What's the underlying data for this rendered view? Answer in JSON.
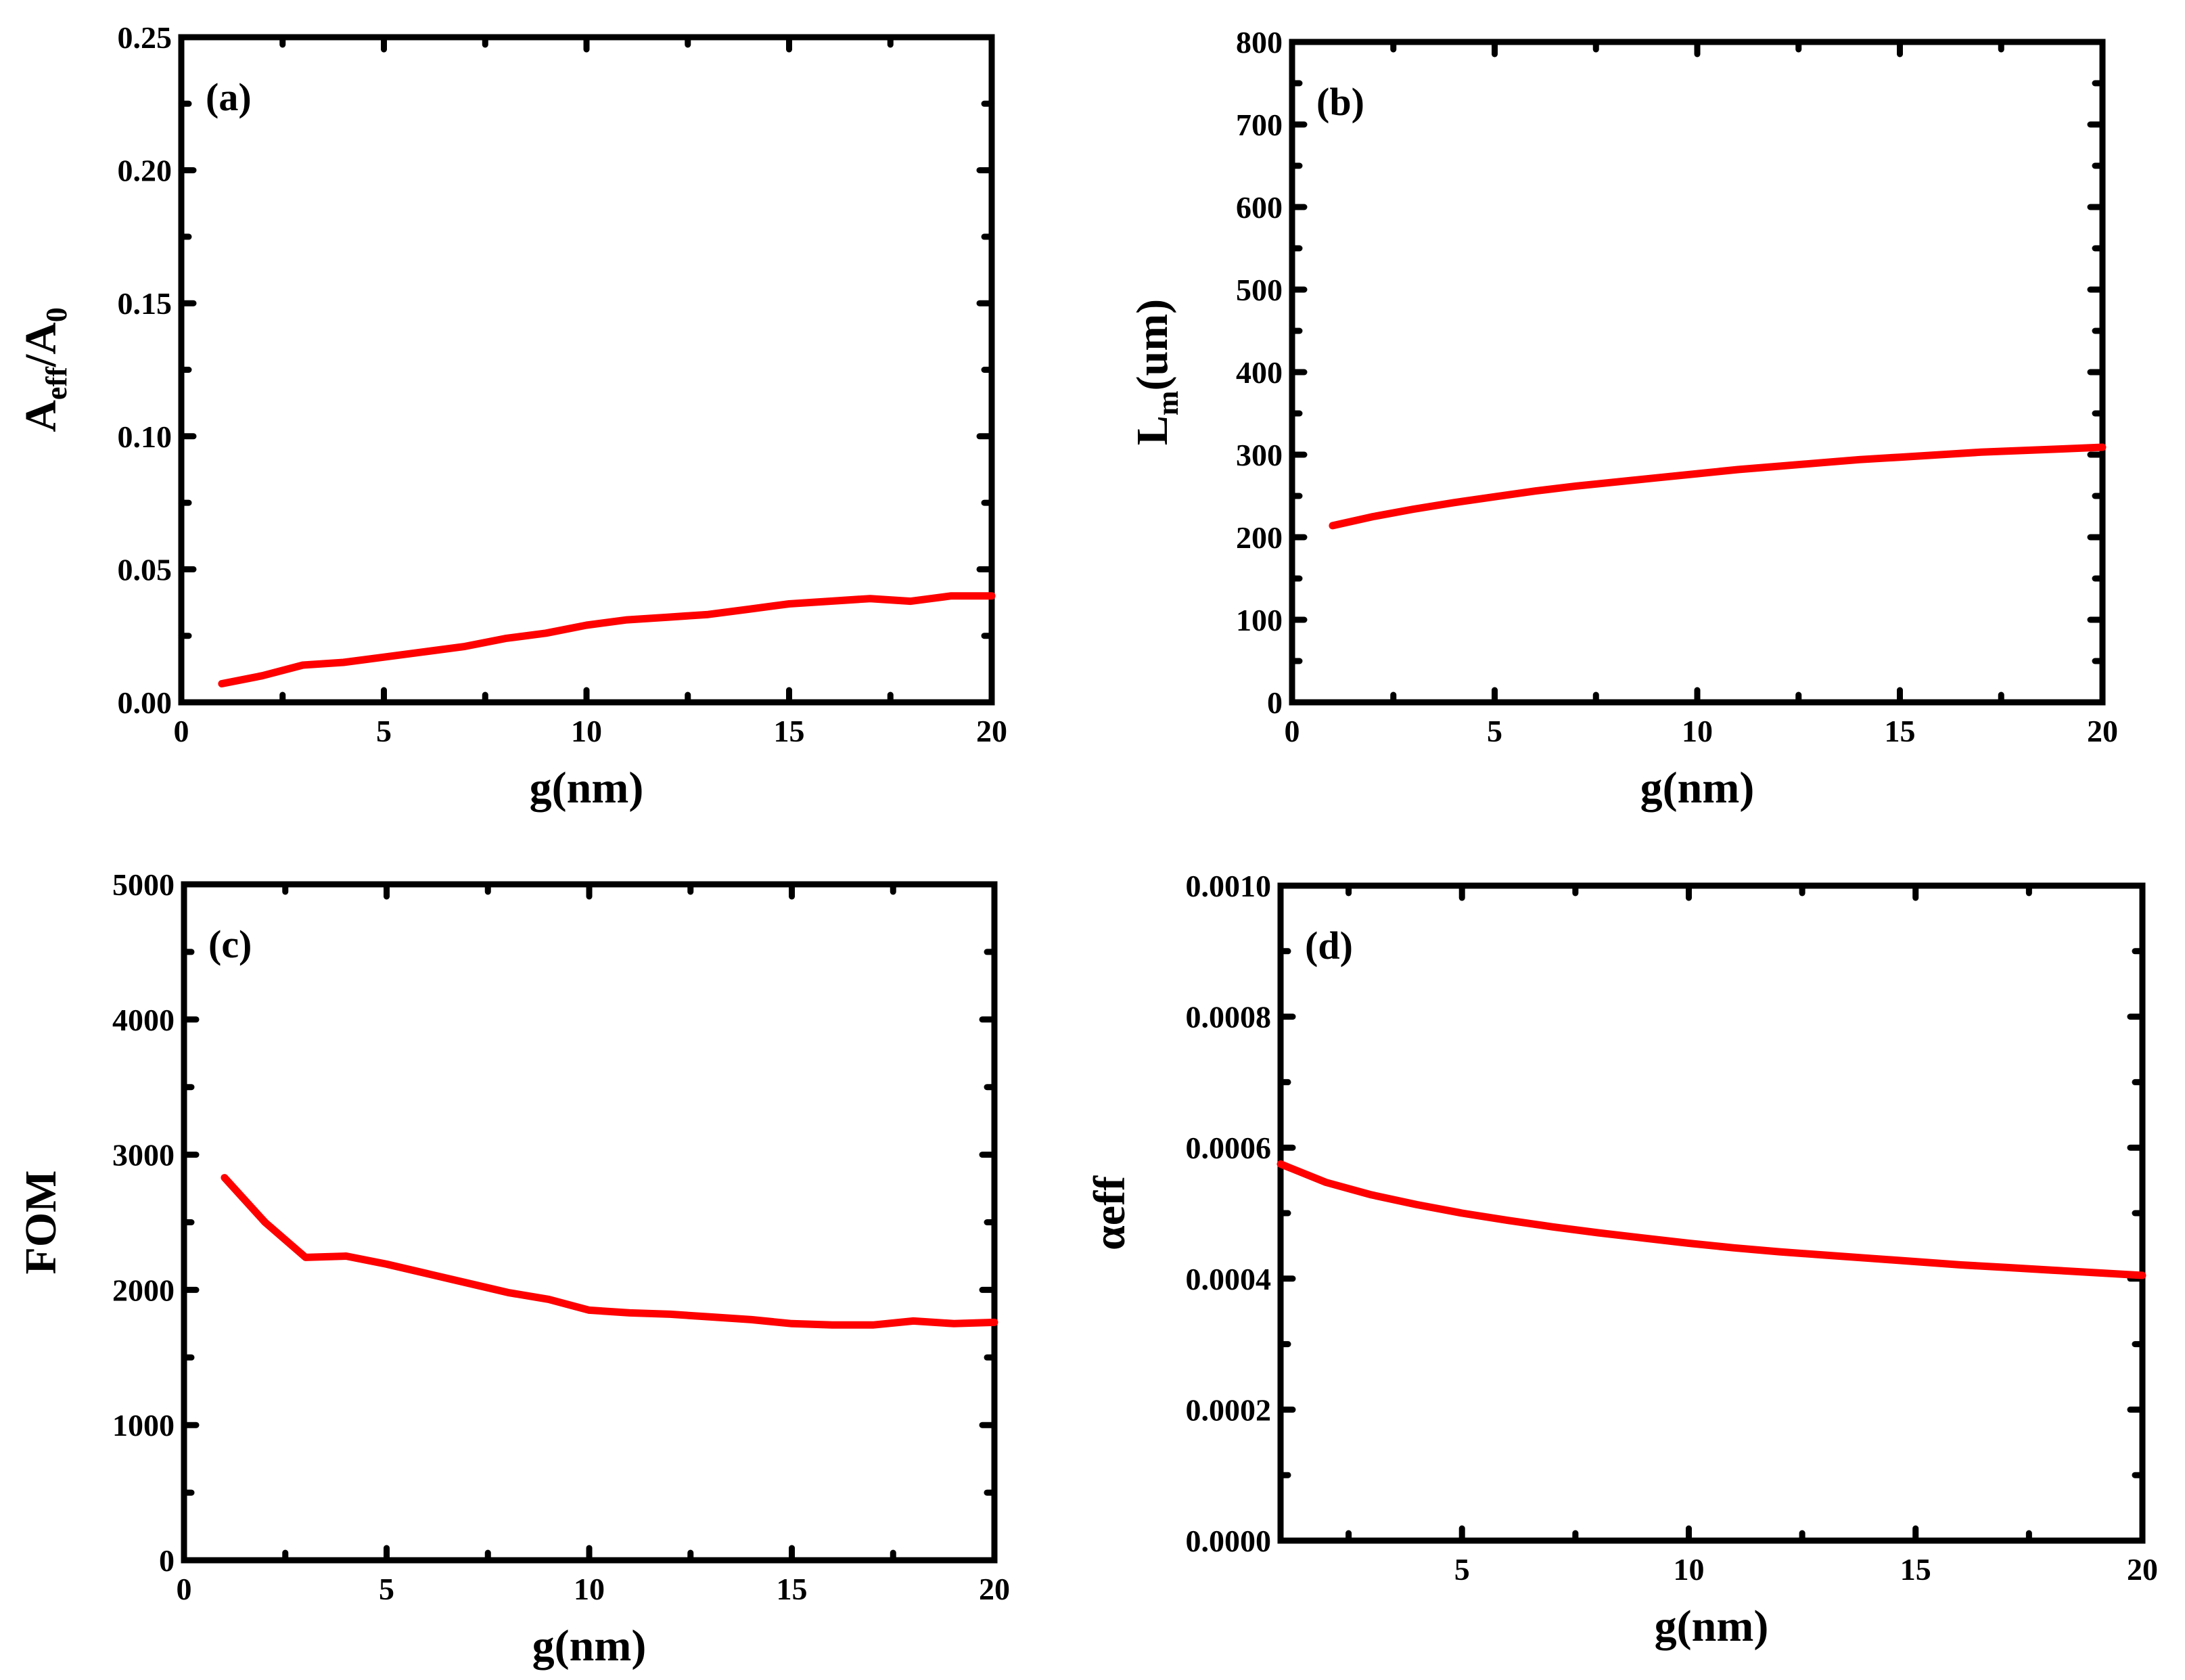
{
  "chart_data": [
    {
      "type": "line",
      "panel_label": "(a)",
      "xlabel": "g(nm)",
      "ylabel": "A_eff/A_0",
      "ylabel_parts": {
        "base1": "A",
        "sub1": "eff",
        "mid": "/A",
        "sub2": "0"
      },
      "xlim": [
        0,
        20
      ],
      "ylim": [
        0,
        0.25
      ],
      "x_ticks": [
        0,
        5,
        10,
        15,
        20
      ],
      "x_tick_labels": [
        "0",
        "5",
        "10",
        "15",
        "20"
      ],
      "y_ticks": [
        0.0,
        0.05,
        0.1,
        0.15,
        0.2,
        0.25
      ],
      "y_tick_labels": [
        "0.00",
        "0.05",
        "0.10",
        "0.15",
        "0.20",
        "0.25"
      ],
      "series": [
        {
          "name": "A_eff/A_0",
          "color": "#ff0000",
          "x": [
            1,
            2,
            3,
            4,
            5,
            6,
            7,
            8,
            9,
            10,
            11,
            12,
            13,
            14,
            15,
            16,
            17,
            18,
            19,
            20
          ],
          "y": [
            0.007,
            0.01,
            0.014,
            0.015,
            0.017,
            0.019,
            0.021,
            0.024,
            0.026,
            0.029,
            0.031,
            0.032,
            0.033,
            0.035,
            0.037,
            0.038,
            0.039,
            0.038,
            0.04,
            0.04
          ]
        }
      ]
    },
    {
      "type": "line",
      "panel_label": "(b)",
      "xlabel": "g(nm)",
      "ylabel": "L_m(um)",
      "ylabel_parts": {
        "base1": "L",
        "sub1": "m",
        "mid": "(um)",
        "sub2": ""
      },
      "xlim": [
        0,
        20
      ],
      "ylim": [
        0,
        800
      ],
      "x_ticks": [
        0,
        5,
        10,
        15,
        20
      ],
      "x_tick_labels": [
        "0",
        "5",
        "10",
        "15",
        "20"
      ],
      "y_ticks": [
        0,
        100,
        200,
        300,
        400,
        500,
        600,
        700,
        800
      ],
      "y_tick_labels": [
        "0",
        "100",
        "200",
        "300",
        "400",
        "500",
        "600",
        "700",
        "800"
      ],
      "series": [
        {
          "name": "L_m",
          "color": "#ff0000",
          "x": [
            1,
            2,
            3,
            4,
            5,
            6,
            7,
            8,
            9,
            10,
            11,
            12,
            13,
            14,
            15,
            16,
            17,
            18,
            19,
            20
          ],
          "y": [
            214,
            225,
            234,
            242,
            249,
            256,
            262,
            267,
            272,
            277,
            282,
            286,
            290,
            294,
            297,
            300,
            303,
            305,
            307,
            309
          ]
        }
      ]
    },
    {
      "type": "line",
      "panel_label": "(c)",
      "xlabel": "g(nm)",
      "ylabel": "FOM",
      "ylabel_parts": {
        "base1": "FOM",
        "sub1": "",
        "mid": "",
        "sub2": ""
      },
      "xlim": [
        0,
        20
      ],
      "ylim": [
        0,
        5000
      ],
      "x_ticks": [
        0,
        5,
        10,
        15,
        20
      ],
      "x_tick_labels": [
        "0",
        "5",
        "10",
        "15",
        "20"
      ],
      "y_ticks": [
        0,
        1000,
        2000,
        3000,
        4000,
        5000
      ],
      "y_tick_labels": [
        "0",
        "1000",
        "2000",
        "3000",
        "4000",
        "5000"
      ],
      "series": [
        {
          "name": "FOM",
          "color": "#ff0000",
          "x": [
            1,
            2,
            3,
            4,
            5,
            6,
            7,
            8,
            9,
            10,
            11,
            12,
            13,
            14,
            15,
            16,
            17,
            18,
            19,
            20
          ],
          "y": [
            2830,
            2500,
            2240,
            2250,
            2190,
            2120,
            2050,
            1980,
            1930,
            1850,
            1830,
            1820,
            1800,
            1780,
            1750,
            1740,
            1740,
            1770,
            1750,
            1760
          ]
        }
      ]
    },
    {
      "type": "line",
      "panel_label": "(d)",
      "xlabel": "g(nm)",
      "ylabel": "αeff",
      "ylabel_parts": {
        "base1": "αeff",
        "sub1": "",
        "mid": "",
        "sub2": ""
      },
      "xlim": [
        1,
        20
      ],
      "ylim": [
        0,
        0.001
      ],
      "x_ticks": [
        5,
        10,
        15,
        20
      ],
      "x_tick_labels": [
        "5",
        "10",
        "15",
        "20"
      ],
      "y_ticks": [
        0.0,
        0.0002,
        0.0004,
        0.0006,
        0.0008,
        0.001
      ],
      "y_tick_labels": [
        "0.0000",
        "0.0002",
        "0.0004",
        "0.0006",
        "0.0008",
        "0.0010"
      ],
      "series": [
        {
          "name": "αeff",
          "color": "#ff0000",
          "x": [
            1,
            2,
            3,
            4,
            5,
            6,
            7,
            8,
            9,
            10,
            11,
            12,
            13,
            14,
            15,
            16,
            17,
            18,
            19,
            20
          ],
          "y": [
            0.000575,
            0.000547,
            0.000528,
            0.000513,
            0.0005,
            0.000489,
            0.000479,
            0.00047,
            0.000462,
            0.000454,
            0.000447,
            0.000441,
            0.000436,
            0.000431,
            0.000426,
            0.000421,
            0.000417,
            0.000413,
            0.000409,
            0.000405
          ]
        }
      ]
    }
  ]
}
